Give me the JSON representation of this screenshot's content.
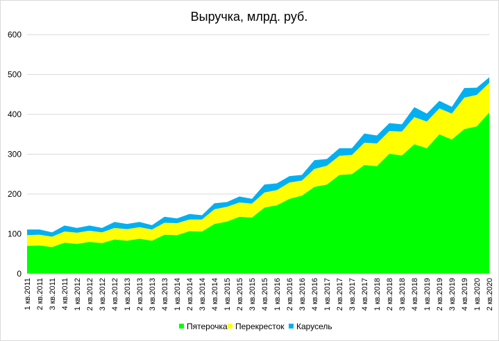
{
  "chart_data": {
    "type": "area",
    "stacked": true,
    "title": "Выручка, млрд. руб.",
    "xlabel": "",
    "ylabel": "",
    "ylim": [
      0,
      600
    ],
    "yticks": [
      0,
      100,
      200,
      300,
      400,
      500,
      600
    ],
    "grid": true,
    "legend_position": "bottom",
    "categories": [
      "1 кв.2011",
      "2 кв.2011",
      "3 кв.2011",
      "4 кв.2011",
      "1 кв.2012",
      "2 кв.2012",
      "3 кв.2012",
      "4 кв.2012",
      "1 кв.2013",
      "2 кв.2013",
      "3 кв.2013",
      "4 кв.2013",
      "1 кв.2014",
      "2 кв.2014",
      "3 кв.2014",
      "4 кв.2014",
      "1 кв.2015",
      "2 кв.2015",
      "3 кв.2015",
      "4 кв.2015",
      "1 кв.2016",
      "2 кв.2016",
      "3 кв.2016",
      "4 кв.2016",
      "1 кв.2017",
      "2 кв.2017",
      "3 кв.2017",
      "4 кв.2017",
      "1 кв.2018",
      "2 кв.2018",
      "3 кв.2018",
      "4 кв.2018",
      "1 кв.2019",
      "2 кв.2019",
      "3 кв.2019",
      "4 кв.2019",
      "1 кв.2020",
      "2 кв.2020"
    ],
    "series": [
      {
        "name": "Пятерочка",
        "color": "#00ff00",
        "values": [
          70,
          71,
          67,
          78,
          75,
          80,
          77,
          86,
          83,
          88,
          83,
          98,
          97,
          107,
          106,
          125,
          131,
          143,
          141,
          166,
          172,
          188,
          196,
          218,
          224,
          248,
          250,
          273,
          270,
          301,
          297,
          325,
          315,
          350,
          337,
          363,
          370,
          405
        ]
      },
      {
        "name": "Перекресток",
        "color": "#ffff00",
        "values": [
          27,
          27,
          26,
          28,
          28,
          28,
          27,
          29,
          29,
          29,
          28,
          30,
          30,
          29,
          30,
          37,
          37,
          36,
          35,
          38,
          38,
          41,
          38,
          45,
          47,
          48,
          48,
          56,
          57,
          57,
          60,
          68,
          67,
          65,
          65,
          79,
          79,
          74
        ]
      },
      {
        "name": "Карусель",
        "color": "#00b0f0",
        "values": [
          14,
          13,
          11,
          15,
          12,
          13,
          11,
          15,
          13,
          13,
          11,
          15,
          12,
          14,
          11,
          15,
          12,
          15,
          12,
          20,
          17,
          16,
          14,
          22,
          17,
          19,
          17,
          23,
          20,
          20,
          18,
          25,
          20,
          19,
          17,
          24,
          18,
          14
        ]
      }
    ]
  }
}
